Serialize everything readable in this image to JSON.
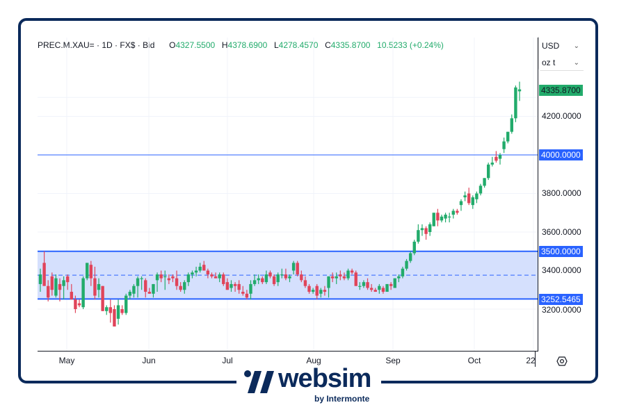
{
  "legend": {
    "symbol": "PREC.M.XAU=",
    "sep1": " · ",
    "interval": "1D",
    "sep2": " · ",
    "source": "FX$",
    "sep3": " · ",
    "price_type": "Bid",
    "open_label": "O",
    "open": "4327.5500",
    "high_label": "H",
    "high": "4378.6900",
    "low_label": "L",
    "low": "4278.4570",
    "close_label": "C",
    "close": "4335.8700",
    "change": "10.5233 (+0.24%)"
  },
  "selectors": {
    "currency": "USD",
    "unit": "oz t"
  },
  "price_axis": {
    "ticks": [
      "4200.0000",
      "4000.0000",
      "3800.0000",
      "3600.0000",
      "3500.0000",
      "3400.0000",
      "3200.0000"
    ],
    "last_price_label": "4335.8700",
    "level_labels": [
      "4000.0000",
      "3500.0000",
      "3252.5465"
    ]
  },
  "time_axis": {
    "ticks": [
      "May",
      "Jun",
      "Jul",
      "Aug",
      "Sep",
      "Oct",
      "22"
    ]
  },
  "settings_icon": "gear-icon",
  "logo": {
    "name": "websim",
    "tagline": "by Intermonte"
  },
  "colors": {
    "up": "#22ab6b",
    "down": "#e0445a",
    "level_line": "#2962ff",
    "range_fill": "#d3defd",
    "frame": "#0b2a5b"
  },
  "chart_data": {
    "type": "candlestick",
    "title": "PREC.M.XAU= · 1D · FX$ · Bid",
    "xlabel": "",
    "ylabel": "USD / oz t",
    "ylim": [
      3010,
      4500
    ],
    "x_ticks": [
      "May",
      "Jun",
      "Jul",
      "Aug",
      "Sep",
      "Oct",
      "22"
    ],
    "grid": true,
    "horizontal_lines": [
      4000,
      3500,
      3252.5465
    ],
    "range_band": {
      "top": 3500,
      "bottom": 3252.5465,
      "mid_dashed": 3376
    },
    "last": {
      "open": 4327.55,
      "high": 4378.69,
      "low": 4278.457,
      "close": 4335.87,
      "change": 10.5233,
      "change_pct": 0.24
    },
    "candles": [
      [
        3330,
        3410,
        3290,
        3380
      ],
      [
        3440,
        3500,
        3380,
        3320
      ],
      [
        3320,
        3350,
        3240,
        3260
      ],
      [
        3370,
        3390,
        3270,
        3300
      ],
      [
        3270,
        3380,
        3260,
        3360
      ],
      [
        3330,
        3360,
        3240,
        3300
      ],
      [
        3320,
        3370,
        3250,
        3350
      ],
      [
        3370,
        3380,
        3300,
        3340
      ],
      [
        3290,
        3330,
        3250,
        3250
      ],
      [
        3250,
        3270,
        3180,
        3200
      ],
      [
        3230,
        3250,
        3210,
        3220
      ],
      [
        3210,
        3370,
        3200,
        3360
      ],
      [
        3360,
        3440,
        3350,
        3440
      ],
      [
        3430,
        3450,
        3320,
        3360
      ],
      [
        3360,
        3420,
        3250,
        3270
      ],
      [
        3300,
        3360,
        3260,
        3330
      ],
      [
        3320,
        3320,
        3190,
        3190
      ],
      [
        3190,
        3220,
        3170,
        3210
      ],
      [
        3210,
        3250,
        3130,
        3180
      ],
      [
        3200,
        3220,
        3110,
        3110
      ],
      [
        3150,
        3250,
        3120,
        3220
      ],
      [
        3200,
        3220,
        3170,
        3180
      ],
      [
        3180,
        3280,
        3170,
        3270
      ],
      [
        3270,
        3300,
        3250,
        3290
      ],
      [
        3280,
        3330,
        3260,
        3320
      ],
      [
        3320,
        3370,
        3260,
        3360
      ],
      [
        3360,
        3370,
        3300,
        3360
      ],
      [
        3350,
        3360,
        3260,
        3290
      ],
      [
        3290,
        3310,
        3280,
        3280
      ],
      [
        3280,
        3330,
        3260,
        3330
      ],
      [
        3350,
        3390,
        3290,
        3380
      ],
      [
        3380,
        3400,
        3340,
        3360
      ],
      [
        3370,
        3400,
        3300,
        3370
      ],
      [
        3360,
        3380,
        3330,
        3350
      ],
      [
        3370,
        3380,
        3340,
        3360
      ],
      [
        3360,
        3400,
        3300,
        3320
      ],
      [
        3320,
        3340,
        3290,
        3300
      ],
      [
        3300,
        3350,
        3280,
        3340
      ],
      [
        3340,
        3390,
        3320,
        3380
      ],
      [
        3380,
        3400,
        3360,
        3390
      ],
      [
        3390,
        3420,
        3370,
        3400
      ],
      [
        3400,
        3440,
        3390,
        3420
      ],
      [
        3430,
        3450,
        3400,
        3400
      ],
      [
        3400,
        3410,
        3360,
        3380
      ],
      [
        3380,
        3390,
        3360,
        3370
      ],
      [
        3370,
        3390,
        3360,
        3360
      ],
      [
        3360,
        3390,
        3340,
        3380
      ],
      [
        3380,
        3390,
        3320,
        3330
      ],
      [
        3340,
        3360,
        3300,
        3300
      ],
      [
        3310,
        3350,
        3290,
        3330
      ],
      [
        3330,
        3340,
        3290,
        3320
      ],
      [
        3330,
        3350,
        3280,
        3300
      ],
      [
        3290,
        3320,
        3270,
        3280
      ],
      [
        3280,
        3300,
        3250,
        3260
      ],
      [
        3280,
        3350,
        3250,
        3330
      ],
      [
        3330,
        3380,
        3320,
        3350
      ],
      [
        3350,
        3380,
        3330,
        3360
      ],
      [
        3360,
        3370,
        3330,
        3340
      ],
      [
        3340,
        3400,
        3330,
        3380
      ],
      [
        3390,
        3400,
        3360,
        3370
      ],
      [
        3370,
        3380,
        3320,
        3330
      ],
      [
        3340,
        3390,
        3320,
        3380
      ],
      [
        3380,
        3410,
        3360,
        3380
      ],
      [
        3380,
        3410,
        3350,
        3360
      ],
      [
        3360,
        3380,
        3340,
        3370
      ],
      [
        3400,
        3450,
        3380,
        3440
      ],
      [
        3440,
        3450,
        3370,
        3380
      ],
      [
        3380,
        3400,
        3340,
        3350
      ],
      [
        3350,
        3370,
        3310,
        3320
      ],
      [
        3320,
        3330,
        3280,
        3290
      ],
      [
        3290,
        3310,
        3280,
        3300
      ],
      [
        3320,
        3330,
        3250,
        3270
      ],
      [
        3280,
        3310,
        3260,
        3300
      ],
      [
        3300,
        3320,
        3270,
        3290
      ],
      [
        3310,
        3370,
        3260,
        3370
      ],
      [
        3370,
        3390,
        3340,
        3360
      ],
      [
        3360,
        3390,
        3330,
        3370
      ],
      [
        3380,
        3400,
        3350,
        3370
      ],
      [
        3370,
        3390,
        3350,
        3360
      ],
      [
        3360,
        3410,
        3350,
        3400
      ],
      [
        3400,
        3410,
        3380,
        3390
      ],
      [
        3390,
        3400,
        3320,
        3320
      ],
      [
        3320,
        3340,
        3300,
        3320
      ],
      [
        3320,
        3350,
        3310,
        3340
      ],
      [
        3340,
        3360,
        3300,
        3310
      ],
      [
        3310,
        3330,
        3290,
        3300
      ],
      [
        3300,
        3310,
        3290,
        3290
      ],
      [
        3300,
        3330,
        3280,
        3320
      ],
      [
        3310,
        3320,
        3280,
        3290
      ],
      [
        3290,
        3330,
        3290,
        3330
      ],
      [
        3330,
        3340,
        3300,
        3320
      ],
      [
        3310,
        3360,
        3310,
        3360
      ],
      [
        3360,
        3380,
        3340,
        3370
      ],
      [
        3370,
        3420,
        3360,
        3410
      ],
      [
        3410,
        3460,
        3400,
        3450
      ],
      [
        3450,
        3500,
        3440,
        3490
      ],
      [
        3490,
        3560,
        3480,
        3550
      ],
      [
        3550,
        3640,
        3540,
        3610
      ],
      [
        3610,
        3640,
        3580,
        3620
      ],
      [
        3620,
        3630,
        3560,
        3590
      ],
      [
        3600,
        3650,
        3580,
        3640
      ],
      [
        3630,
        3700,
        3630,
        3700
      ],
      [
        3700,
        3720,
        3630,
        3660
      ],
      [
        3660,
        3690,
        3650,
        3680
      ],
      [
        3670,
        3700,
        3650,
        3690
      ],
      [
        3680,
        3700,
        3650,
        3680
      ],
      [
        3690,
        3720,
        3670,
        3710
      ],
      [
        3710,
        3720,
        3690,
        3700
      ],
      [
        3740,
        3770,
        3710,
        3760
      ],
      [
        3780,
        3810,
        3760,
        3790
      ],
      [
        3800,
        3830,
        3740,
        3750
      ],
      [
        3740,
        3790,
        3720,
        3780
      ],
      [
        3770,
        3810,
        3750,
        3800
      ],
      [
        3800,
        3850,
        3790,
        3840
      ],
      [
        3840,
        3880,
        3830,
        3880
      ],
      [
        3880,
        3960,
        3870,
        3950
      ],
      [
        3950,
        3990,
        3940,
        3960
      ],
      [
        3990,
        4020,
        3960,
        3970
      ],
      [
        3980,
        4010,
        3950,
        4000
      ],
      [
        4030,
        4090,
        4010,
        4070
      ],
      [
        4070,
        4120,
        4060,
        4120
      ],
      [
        4120,
        4210,
        4110,
        4190
      ],
      [
        4190,
        4360,
        4170,
        4350
      ],
      [
        4330,
        4380,
        4280,
        4340
      ]
    ]
  }
}
